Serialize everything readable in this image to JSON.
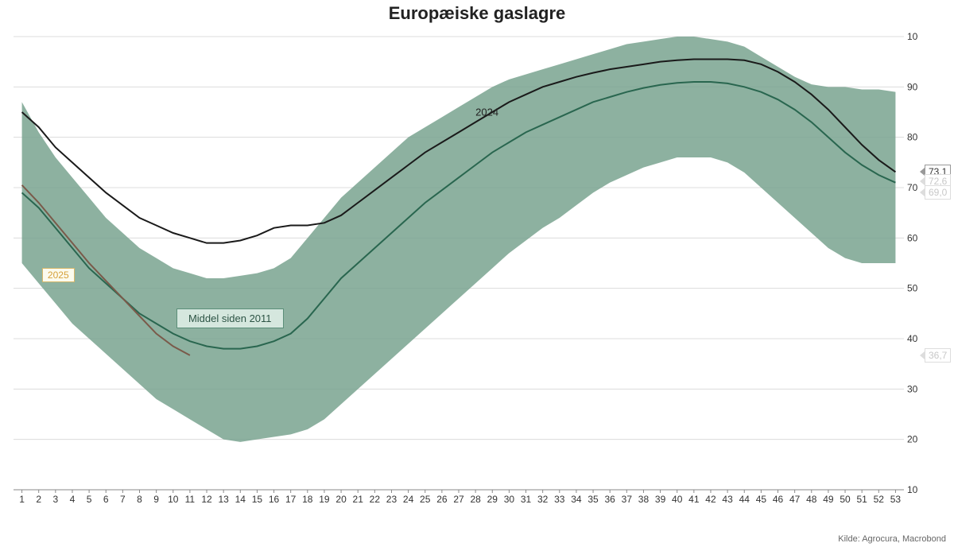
{
  "title": "Europæiske gaslagre",
  "source_text": "Kilde: Agrocura, Macrobond",
  "chart": {
    "type": "area-band-with-lines",
    "background_color": "#ffffff",
    "grid_color": "#dcdcdc",
    "axis_color": "#888888",
    "font_family": "Arial",
    "title_fontsize": 22,
    "tick_fontsize": 12,
    "x": {
      "label": "",
      "min": 0.5,
      "max": 53.5,
      "ticks": [
        1,
        2,
        3,
        4,
        5,
        6,
        7,
        8,
        9,
        10,
        11,
        12,
        13,
        14,
        15,
        16,
        17,
        18,
        19,
        20,
        21,
        22,
        23,
        24,
        25,
        26,
        27,
        28,
        29,
        30,
        31,
        32,
        33,
        34,
        35,
        36,
        37,
        38,
        39,
        40,
        41,
        42,
        43,
        44,
        45,
        46,
        47,
        48,
        49,
        50,
        51,
        52,
        53
      ]
    },
    "y": {
      "label": "",
      "min": 10,
      "max": 100,
      "ticks": [
        10,
        20,
        30,
        40,
        50,
        60,
        70,
        80,
        90,
        100
      ],
      "side": "right"
    },
    "band": {
      "name": "Middel siden 2011",
      "fill_color": "#79a38f",
      "upper": [
        87,
        81,
        76,
        72,
        68,
        64,
        61,
        58,
        56,
        54,
        53,
        52,
        52,
        52.5,
        53,
        54,
        56,
        60,
        64,
        68,
        71,
        74,
        77,
        80,
        82,
        84,
        86,
        88,
        90,
        91.5,
        92.5,
        93.5,
        94.5,
        95.5,
        96.5,
        97.5,
        98.5,
        99,
        99.5,
        100,
        100,
        99.5,
        99,
        98,
        96,
        94,
        92,
        90.5,
        90,
        90,
        89.5,
        89.5,
        89
      ],
      "lower": [
        55,
        51,
        47,
        43,
        40,
        37,
        34,
        31,
        28,
        26,
        24,
        22,
        20,
        19.5,
        20,
        20.5,
        21,
        22,
        24,
        27,
        30,
        33,
        36,
        39,
        42,
        45,
        48,
        51,
        54,
        57,
        59.5,
        62,
        64,
        66.5,
        69,
        71,
        72.5,
        74,
        75,
        76,
        76,
        76,
        75,
        73,
        70,
        67,
        64,
        61,
        58,
        56,
        55,
        55,
        55
      ]
    },
    "mean_line": {
      "name": "Middel siden 2011",
      "stroke_color": "#29664f",
      "stroke_width": 2,
      "values": [
        69,
        66,
        62,
        58,
        54,
        51,
        48,
        45,
        43,
        41,
        39.5,
        38.5,
        38,
        38,
        38.5,
        39.5,
        41,
        44,
        48,
        52,
        55,
        58,
        61,
        64,
        67,
        69.5,
        72,
        74.5,
        77,
        79,
        81,
        82.5,
        84,
        85.5,
        87,
        88,
        89,
        89.8,
        90.4,
        90.8,
        91,
        91,
        90.7,
        90,
        89,
        87.5,
        85.5,
        83,
        80,
        77,
        74.5,
        72.5,
        71
      ]
    },
    "line_2024": {
      "name": "2024",
      "label": "2024",
      "stroke_color": "#1a1a1a",
      "stroke_width": 2,
      "values": [
        85,
        82,
        78,
        75,
        72,
        69,
        66.5,
        64,
        62.5,
        61,
        60,
        59,
        59,
        59.5,
        60.5,
        62,
        62.5,
        62.5,
        63,
        64.5,
        67,
        69.5,
        72,
        74.5,
        77,
        79,
        81,
        83,
        85,
        87,
        88.5,
        90,
        91,
        92,
        92.8,
        93.5,
        94,
        94.5,
        95,
        95.3,
        95.5,
        95.5,
        95.5,
        95.3,
        94.5,
        93,
        91,
        88.5,
        85.5,
        82,
        78.5,
        75.5,
        73.1
      ]
    },
    "line_2025": {
      "name": "2025",
      "label": "2025",
      "stroke_color": "#7a5a4a",
      "stroke_width": 2,
      "values": [
        70.5,
        67,
        63,
        59,
        55,
        51.5,
        48,
        44.5,
        41,
        38.5,
        36.7
      ]
    },
    "end_markers": [
      {
        "value_label": "73,1",
        "value": 73.1,
        "color": "#333",
        "faint": false
      },
      {
        "value_label": "72,6",
        "value": 71.3,
        "color": "#c8c8c8",
        "faint": true
      },
      {
        "value_label": "69,0",
        "value": 69.0,
        "color": "#c8c8c8",
        "faint": true
      },
      {
        "value_label": "36,7",
        "value": 36.7,
        "color": "#888",
        "faint": true
      }
    ],
    "inline_labels": {
      "label_2024": "2024",
      "label_2025": "2025",
      "label_band": "Middel siden 2011"
    }
  }
}
